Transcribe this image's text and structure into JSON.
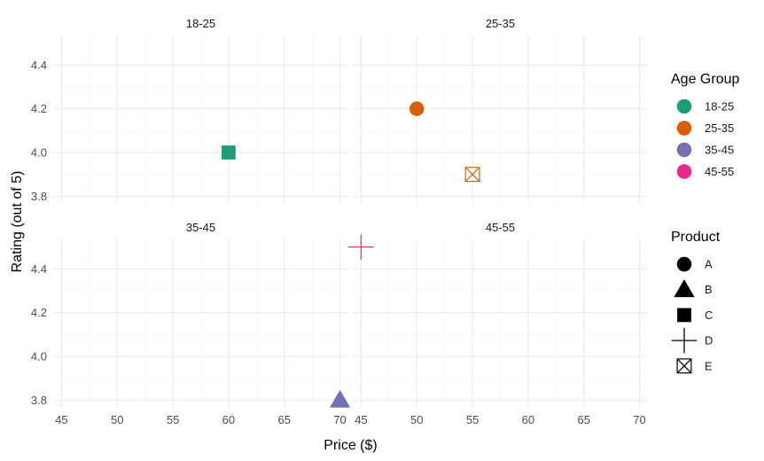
{
  "chart_data": {
    "type": "scatter",
    "facet_by": "Age Group",
    "facets": [
      "18-25",
      "25-35",
      "35-45",
      "45-55"
    ],
    "xlabel": "Price ($)",
    "ylabel": "Rating (out of 5)",
    "x_ticks": [
      45,
      50,
      55,
      60,
      65,
      70
    ],
    "y_ticks": [
      3.8,
      4.0,
      4.2,
      4.4
    ],
    "xlim": [
      44.25,
      70.75
    ],
    "ylim": [
      3.765,
      4.535
    ],
    "grid": true,
    "legend_position": "right",
    "colors": {
      "18-25": "#1b9e77",
      "25-35": "#d95f02",
      "35-45": "#7570b3",
      "45-55": "#e7298a"
    },
    "shapes": {
      "A": "circle",
      "B": "triangle",
      "C": "square",
      "D": "plus",
      "E": "square-x"
    },
    "points": [
      {
        "age_group": "18-25",
        "product": "C",
        "price": 60,
        "rating": 4.0
      },
      {
        "age_group": "25-35",
        "product": "A",
        "price": 50,
        "rating": 4.2
      },
      {
        "age_group": "25-35",
        "product": "E",
        "price": 55,
        "rating": 3.9
      },
      {
        "age_group": "35-45",
        "product": "B",
        "price": 70,
        "rating": 3.8
      },
      {
        "age_group": "45-55",
        "product": "D",
        "price": 45,
        "rating": 4.5
      }
    ],
    "legends": [
      {
        "title": "Age Group",
        "type": "color",
        "items": [
          "18-25",
          "25-35",
          "35-45",
          "45-55"
        ]
      },
      {
        "title": "Product",
        "type": "shape",
        "items": [
          "A",
          "B",
          "C",
          "D",
          "E"
        ]
      }
    ]
  }
}
